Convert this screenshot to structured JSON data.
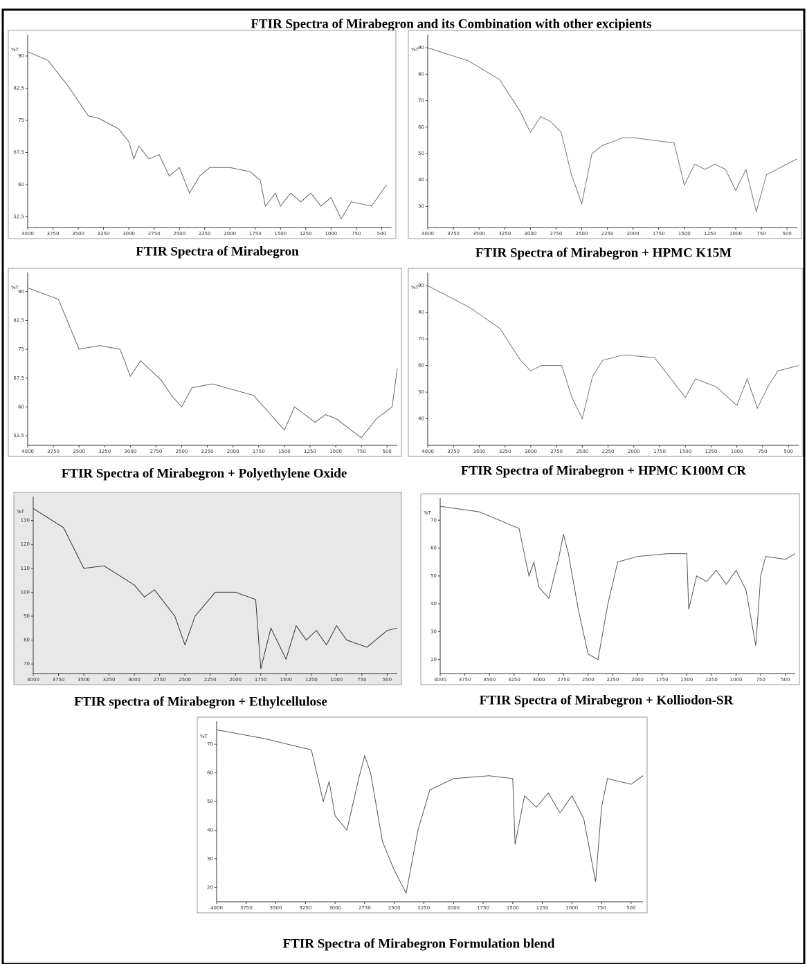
{
  "title": "FTIR Spectra of Mirabegron and its  Combination with other excipients",
  "chart_data": [
    {
      "type": "line",
      "title": "FTIR Spectra of Mirabegron",
      "ylabel": "%T",
      "color": "#666",
      "x": [
        4000,
        3800,
        3600,
        3400,
        3300,
        3100,
        3000,
        2950,
        2900,
        2800,
        2700,
        2600,
        2500,
        2400,
        2300,
        2200,
        2000,
        1800,
        1700,
        1650,
        1550,
        1500,
        1400,
        1300,
        1200,
        1100,
        1000,
        900,
        800,
        600,
        450
      ],
      "values": [
        91,
        89,
        83,
        76,
        75.5,
        73,
        70,
        66,
        69,
        66,
        67,
        62,
        64,
        58,
        62,
        64,
        64,
        63,
        61,
        55,
        58,
        55,
        58,
        56,
        58,
        55,
        57,
        52,
        56,
        55,
        60
      ],
      "xlim": [
        4000,
        400
      ],
      "xticks": [
        4000,
        3750,
        3500,
        3250,
        3000,
        2750,
        2500,
        2250,
        2000,
        1750,
        1500,
        1250,
        1000,
        750,
        500
      ],
      "ylim": [
        50,
        95
      ],
      "yticks": [
        52.5,
        60,
        67.5,
        75,
        82.5,
        90
      ]
    },
    {
      "type": "line",
      "title": "FTIR Spectra of Mirabegron + HPMC K15M",
      "ylabel": "%T",
      "color": "#777",
      "x": [
        4000,
        3600,
        3300,
        3100,
        3000,
        2900,
        2800,
        2700,
        2600,
        2500,
        2400,
        2300,
        2100,
        2000,
        1800,
        1600,
        1500,
        1400,
        1300,
        1200,
        1100,
        1000,
        900,
        800,
        700,
        500,
        400
      ],
      "values": [
        90,
        85,
        78,
        66,
        58,
        64,
        62,
        58,
        42,
        31,
        50,
        53,
        56,
        56,
        55,
        54,
        38,
        46,
        44,
        46,
        44,
        36,
        44,
        28,
        42,
        46,
        48
      ],
      "xlim": [
        4000,
        400
      ],
      "xticks": [
        4000,
        3750,
        3500,
        3250,
        3000,
        2750,
        2500,
        2250,
        2000,
        1750,
        1500,
        1250,
        1000,
        750,
        500
      ],
      "ylim": [
        22,
        95
      ],
      "yticks": [
        30,
        40,
        50,
        60,
        70,
        80,
        90
      ]
    },
    {
      "type": "line",
      "title": "FTIR Spectra of Mirabegron + Polyethylene Oxide",
      "ylabel": "%T",
      "color": "#666",
      "x": [
        4000,
        3700,
        3500,
        3300,
        3100,
        3000,
        2900,
        2700,
        2600,
        2500,
        2400,
        2200,
        1800,
        1700,
        1500,
        1400,
        1300,
        1200,
        1100,
        1000,
        900,
        750,
        600,
        450,
        400
      ],
      "values": [
        91,
        88,
        75,
        76,
        75,
        68,
        72,
        67,
        63,
        60,
        65,
        66,
        63,
        60,
        54,
        60,
        58,
        56,
        58,
        57,
        55,
        52,
        57,
        60,
        70
      ],
      "xlim": [
        4000,
        400
      ],
      "xticks": [
        4000,
        3750,
        3500,
        3250,
        3000,
        2750,
        2500,
        2250,
        2000,
        1750,
        1500,
        1250,
        1000,
        750,
        500
      ],
      "ylim": [
        50,
        95
      ],
      "yticks": [
        52.5,
        60,
        67.5,
        75,
        82.5,
        90
      ]
    },
    {
      "type": "line",
      "title": "FTIR Spectra of Mirabegron + HPMC K100M CR",
      "ylabel": "%T",
      "color": "#777",
      "x": [
        4000,
        3600,
        3300,
        3100,
        3000,
        2900,
        2700,
        2600,
        2500,
        2400,
        2300,
        2100,
        1800,
        1500,
        1400,
        1200,
        1000,
        900,
        800,
        700,
        600,
        400
      ],
      "values": [
        90,
        82,
        74,
        62,
        58,
        60,
        60,
        48,
        40,
        56,
        62,
        64,
        63,
        48,
        55,
        52,
        45,
        55,
        44,
        52,
        58,
        60
      ],
      "xlim": [
        4000,
        400
      ],
      "xticks": [
        4000,
        3750,
        3500,
        3250,
        3000,
        2750,
        2500,
        2250,
        2000,
        1750,
        1500,
        1250,
        1000,
        750,
        500
      ],
      "ylim": [
        30,
        95
      ],
      "yticks": [
        40,
        50,
        60,
        70,
        80,
        90
      ]
    },
    {
      "type": "line",
      "title": "FTIR spectra of Mirabegron + Ethylcellulose",
      "ylabel": "%T",
      "color": "#333",
      "background": "#e8e8e8",
      "x": [
        4000,
        3700,
        3500,
        3300,
        3000,
        2900,
        2800,
        2600,
        2500,
        2400,
        2200,
        2000,
        1800,
        1750,
        1650,
        1500,
        1400,
        1300,
        1200,
        1100,
        1000,
        900,
        700,
        500,
        400
      ],
      "values": [
        135,
        127,
        110,
        111,
        103,
        98,
        101,
        90,
        78,
        90,
        100,
        100,
        97,
        68,
        85,
        72,
        86,
        80,
        84,
        78,
        86,
        80,
        77,
        84,
        85
      ],
      "xlim": [
        4000,
        400
      ],
      "xticks": [
        4000,
        3750,
        3500,
        3250,
        3000,
        2750,
        2500,
        2250,
        2000,
        1750,
        1500,
        1250,
        1000,
        750,
        500
      ],
      "ylim": [
        66,
        140
      ],
      "yticks": [
        70,
        80,
        90,
        100,
        110,
        120,
        130
      ]
    },
    {
      "type": "line",
      "title": "FTIR Spectra of Mirabegron + Kolliodon-SR",
      "ylabel": "%T",
      "color": "#555",
      "x": [
        4000,
        3600,
        3200,
        3100,
        3050,
        3000,
        2900,
        2800,
        2750,
        2700,
        2600,
        2500,
        2400,
        2300,
        2200,
        2000,
        1700,
        1500,
        1480,
        1400,
        1300,
        1200,
        1100,
        1000,
        900,
        800,
        750,
        700,
        500,
        400
      ],
      "values": [
        75,
        73,
        67,
        50,
        55,
        46,
        42,
        56,
        65,
        58,
        38,
        22,
        20,
        40,
        55,
        57,
        58,
        58,
        38,
        50,
        48,
        52,
        47,
        52,
        45,
        25,
        50,
        57,
        56,
        58
      ],
      "xlim": [
        4000,
        400
      ],
      "xticks": [
        4000,
        3750,
        3500,
        3250,
        3000,
        2750,
        2500,
        2250,
        2000,
        1750,
        1500,
        1250,
        1000,
        750,
        500
      ],
      "ylim": [
        15,
        78
      ],
      "yticks": [
        20,
        30,
        40,
        50,
        60,
        70
      ]
    },
    {
      "type": "line",
      "title": "FTIR Spectra of Mirabegron Formulation blend",
      "ylabel": "%T",
      "color": "#555",
      "x": [
        4000,
        3600,
        3200,
        3100,
        3050,
        3000,
        2900,
        2800,
        2750,
        2700,
        2600,
        2500,
        2400,
        2300,
        2200,
        2000,
        1700,
        1500,
        1480,
        1400,
        1300,
        1200,
        1100,
        1000,
        900,
        800,
        750,
        700,
        500,
        400
      ],
      "values": [
        75,
        72,
        68,
        50,
        57,
        45,
        40,
        58,
        66,
        60,
        36,
        26,
        18,
        40,
        54,
        58,
        59,
        58,
        35,
        52,
        48,
        53,
        46,
        52,
        44,
        22,
        48,
        58,
        56,
        59
      ],
      "xlim": [
        4000,
        400
      ],
      "xticks": [
        4000,
        3750,
        3500,
        3250,
        3000,
        2750,
        2500,
        2250,
        2000,
        1750,
        1500,
        1250,
        1000,
        750,
        500
      ],
      "ylim": [
        15,
        78
      ],
      "yticks": [
        20,
        30,
        40,
        50,
        60,
        70
      ]
    }
  ]
}
